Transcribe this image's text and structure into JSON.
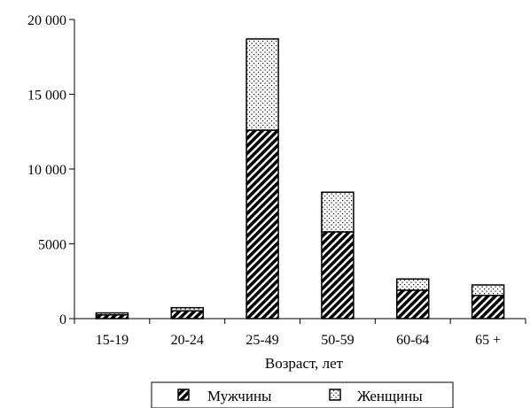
{
  "chart_data": {
    "type": "bar",
    "stacked": true,
    "categories": [
      "15-19",
      "20-24",
      "25-49",
      "50-59",
      "60-64",
      "65 +"
    ],
    "series": [
      {
        "name": "Мужчины",
        "values": [
          250,
          520,
          12600,
          5800,
          1900,
          1550
        ],
        "pattern": "diagonal-hatch"
      },
      {
        "name": "Женщины",
        "values": [
          130,
          210,
          6100,
          2650,
          750,
          700
        ],
        "pattern": "dots"
      }
    ],
    "title": "",
    "xlabel": "Возраст, лет",
    "ylabel": "",
    "ylim": [
      0,
      20000
    ],
    "yticks": [
      0,
      5000,
      10000,
      15000,
      20000
    ],
    "ytick_labels": [
      "0",
      "5000",
      "10 000",
      "15 000",
      "20 000"
    ],
    "grid": false,
    "legend_position": "bottom",
    "colors": {
      "bar_outline": "#000000",
      "background": "#ffffff"
    }
  }
}
